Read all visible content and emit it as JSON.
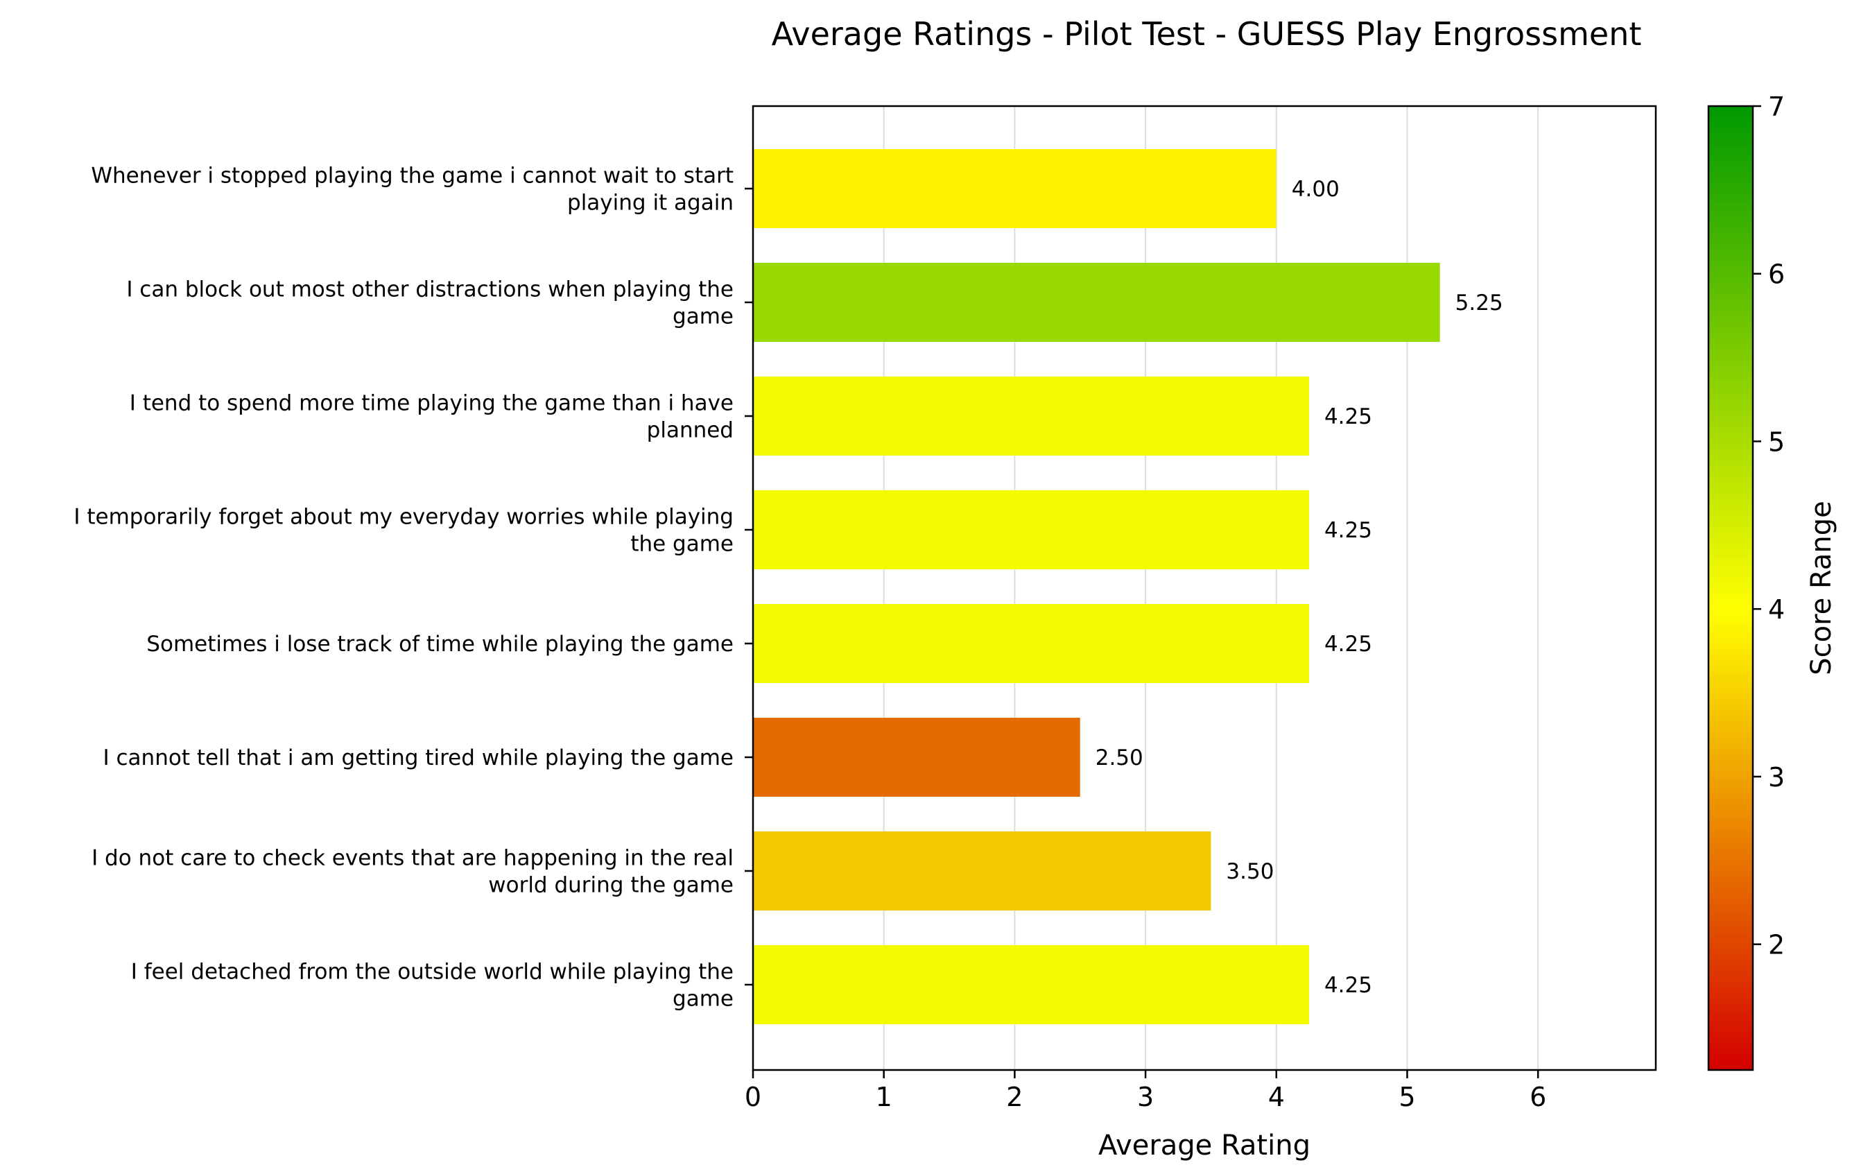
{
  "chart_data": {
    "type": "bar",
    "orientation": "horizontal",
    "title": "Average Ratings - Pilot Test - GUESS Play Engrossment",
    "xlabel": "Average Rating",
    "ylabel": "",
    "xlim": [
      0,
      6.9
    ],
    "x_ticks": [
      0,
      1,
      2,
      3,
      4,
      5,
      6
    ],
    "grid": "vertical",
    "categories": [
      [
        "Whenever i stopped playing the game i cannot wait to start",
        "playing it again"
      ],
      [
        "I can block out most other distractions when playing the",
        "game"
      ],
      [
        "I tend to spend more time playing the game than i have",
        "planned"
      ],
      [
        "I temporarily forget about my everyday worries while playing",
        "the game"
      ],
      [
        "Sometimes i lose track of time while playing the game"
      ],
      [
        "I cannot tell that i am getting tired while playing the game"
      ],
      [
        "I do not care to check events that are happening in the real",
        "world during the game"
      ],
      [
        "I feel detached from the outside world while playing the",
        "game"
      ]
    ],
    "values": [
      4.0,
      5.25,
      4.25,
      4.25,
      4.25,
      2.5,
      3.5,
      4.25
    ],
    "value_labels": [
      "4.00",
      "5.25",
      "4.25",
      "4.25",
      "4.25",
      "2.50",
      "3.50",
      "4.25"
    ],
    "bar_colors": [
      "#fdf200",
      "#9ad900",
      "#f2fb00",
      "#f2fb00",
      "#f2fb00",
      "#e36b00",
      "#f3c800",
      "#f2fb00"
    ],
    "colorbar": {
      "label": "Score Range",
      "range": [
        1.25,
        7
      ],
      "ticks": [
        2,
        3,
        4,
        5,
        6,
        7
      ],
      "colors": [
        "#d40000",
        "#ffff00",
        "#009900"
      ]
    }
  }
}
